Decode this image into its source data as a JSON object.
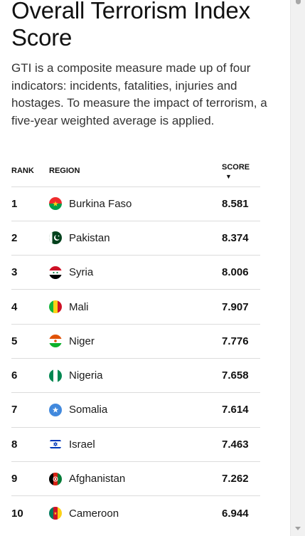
{
  "heading": {
    "title": "Overall Terrorism Index Score",
    "description": "GTI is a composite measure made up of four indicators: incidents, fatalities, injuries and hostages. To measure the impact of terrorism, a five-year weighted average is applied."
  },
  "table": {
    "headers": {
      "rank": "RANK",
      "region": "REGION",
      "score": "SCORE",
      "sort_indicator": "▼"
    },
    "rows": [
      {
        "rank": "1",
        "region": "Burkina Faso",
        "score": "8.581",
        "flag_icon": "burkina-faso-flag-icon"
      },
      {
        "rank": "2",
        "region": "Pakistan",
        "score": "8.374",
        "flag_icon": "pakistan-flag-icon"
      },
      {
        "rank": "3",
        "region": "Syria",
        "score": "8.006",
        "flag_icon": "syria-flag-icon"
      },
      {
        "rank": "4",
        "region": "Mali",
        "score": "7.907",
        "flag_icon": "mali-flag-icon"
      },
      {
        "rank": "5",
        "region": "Niger",
        "score": "7.776",
        "flag_icon": "niger-flag-icon"
      },
      {
        "rank": "6",
        "region": "Nigeria",
        "score": "7.658",
        "flag_icon": "nigeria-flag-icon"
      },
      {
        "rank": "7",
        "region": "Somalia",
        "score": "7.614",
        "flag_icon": "somalia-flag-icon"
      },
      {
        "rank": "8",
        "region": "Israel",
        "score": "7.463",
        "flag_icon": "israel-flag-icon"
      },
      {
        "rank": "9",
        "region": "Afghanistan",
        "score": "7.262",
        "flag_icon": "afghanistan-flag-icon"
      },
      {
        "rank": "10",
        "region": "Cameroon",
        "score": "6.944",
        "flag_icon": "cameroon-flag-icon"
      }
    ]
  }
}
